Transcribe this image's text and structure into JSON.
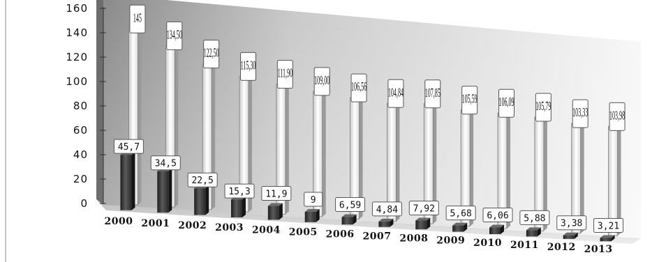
{
  "chart_data": {
    "type": "bar",
    "categories": [
      "2000",
      "2001",
      "2002",
      "2003",
      "2004",
      "2005",
      "2006",
      "2007",
      "2008",
      "2009",
      "2010",
      "2011",
      "2012",
      "2013"
    ],
    "series": [
      {
        "values": [
          145,
          134.5,
          122.5,
          115.3,
          111.9,
          109.0,
          106.56,
          104.84,
          107.85,
          105.59,
          106.09,
          105.79,
          103.33,
          103.98
        ],
        "labels": [
          "145",
          "134,50",
          "122,50",
          "115,30",
          "111,90",
          "109,00",
          "106,56",
          "104,84",
          "107,85",
          "105,59",
          "106,09",
          "105,79",
          "103,33",
          "103,98"
        ],
        "color": "#f2f2f2"
      },
      {
        "values": [
          45.7,
          34.5,
          22.5,
          15.3,
          11.9,
          9,
          6.59,
          4.84,
          7.92,
          5.68,
          6.06,
          5.88,
          3.38,
          3.21
        ],
        "labels": [
          "45,7",
          "34,5",
          "22,5",
          "15,3",
          "11,9",
          "9",
          "6,59",
          "4,84",
          "7,92",
          "5,68",
          "6,06",
          "5,88",
          "3,38",
          "3,21"
        ],
        "color": "#3a3a3a"
      }
    ],
    "yticks": [
      "0",
      "20",
      "40",
      "60",
      "80",
      "100",
      "120",
      "140",
      "160"
    ],
    "ylim": [
      0,
      160
    ],
    "grid": false,
    "legend": "none",
    "style": "3d-perspective"
  }
}
